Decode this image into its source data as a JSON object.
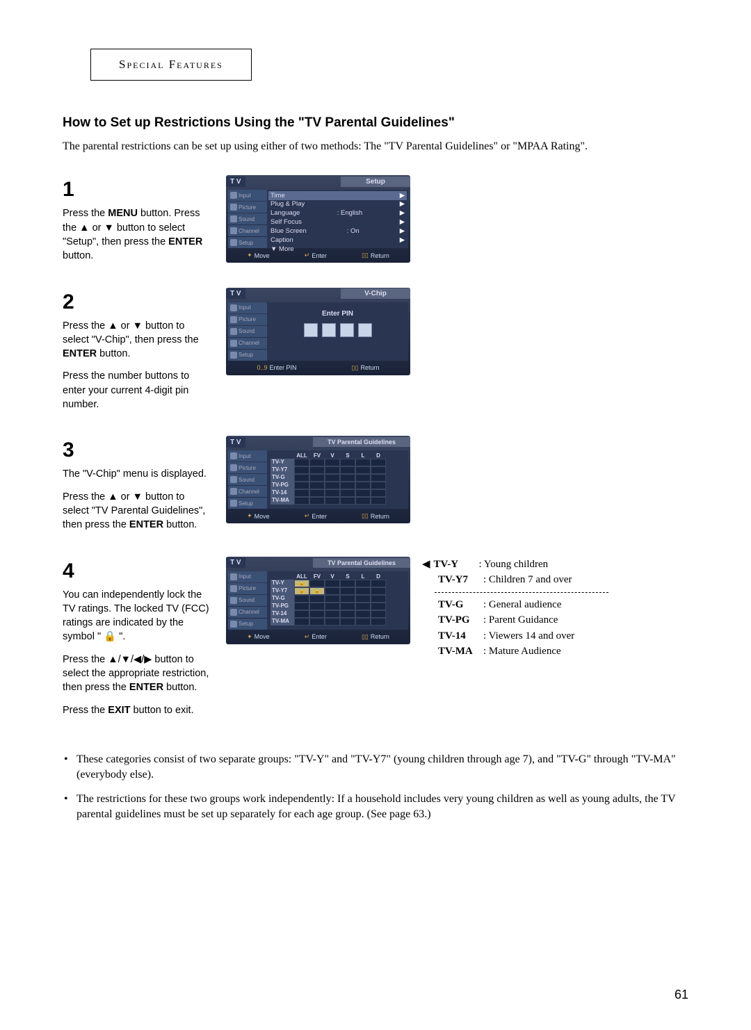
{
  "header": "Special Features",
  "subtitle": "How to Set up Restrictions Using the \"TV Parental Guidelines\"",
  "intro": "The parental restrictions can be set up using either of two methods: The \"TV Parental Guidelines\" or \"MPAA Rating\".",
  "steps": {
    "s1": {
      "num": "1",
      "text_a": "Press the ",
      "bold_a": "MENU",
      "text_b": " button. Press the ▲ or ▼ button to select \"Setup\", then press the ",
      "bold_b": "ENTER",
      "text_c": " button."
    },
    "s2": {
      "num": "2",
      "text_a": "Press the ▲ or ▼ button to select \"V-Chip\", then press the ",
      "bold_a": "ENTER",
      "text_b": " button.",
      "text_c": "Press the number buttons to enter your current 4-digit pin number."
    },
    "s3": {
      "num": "3",
      "text_a": "The \"V-Chip\" menu is displayed.",
      "text_b": "Press the ▲ or ▼ button to select \"TV Parental Guidelines\", then press the ",
      "bold_a": "ENTER",
      "text_c": " button."
    },
    "s4": {
      "num": "4",
      "text_a": "You can independently lock the TV ratings. The locked TV (FCC) ratings are indicated by the symbol \" 🔒 \".",
      "text_b": "Press the ▲/▼/◀/▶ button to select the appropriate restriction, then press  the ",
      "bold_a": "ENTER",
      "text_c": " button.",
      "text_d": "Press the ",
      "bold_b": "EXIT",
      "text_e": " button to exit."
    }
  },
  "osd1": {
    "tv": "T V",
    "title": "Setup",
    "tabs": [
      "Input",
      "Picture",
      "Sound",
      "Channel",
      "Setup"
    ],
    "rows": [
      {
        "l": "Time",
        "r": "▶",
        "hl": true
      },
      {
        "l": "Plug & Play",
        "r": "▶"
      },
      {
        "l": "Language",
        "m": ":  English",
        "r": "▶"
      },
      {
        "l": "Self Focus",
        "r": "▶"
      },
      {
        "l": "Blue Screen",
        "m": ":  On",
        "r": "▶"
      },
      {
        "l": "Caption",
        "r": "▶"
      },
      {
        "l": "▼ More",
        "r": ""
      }
    ],
    "footer": [
      "Move",
      "Enter",
      "Return"
    ]
  },
  "osd2": {
    "tv": "T V",
    "title": "V-Chip",
    "tabs": [
      "Input",
      "Picture",
      "Sound",
      "Channel",
      "Setup"
    ],
    "pin_label": "Enter PIN",
    "footer": [
      "Enter PIN",
      "Return"
    ]
  },
  "osd3": {
    "tv": "T V",
    "title": "TV Parental Guidelines",
    "tabs": [
      "Input",
      "Picture",
      "Sound",
      "Channel",
      "Setup"
    ],
    "cols": [
      "ALL",
      "FV",
      "V",
      "S",
      "L",
      "D"
    ],
    "rows": [
      "TV-Y",
      "TV-Y7",
      "TV-G",
      "TV-PG",
      "TV-14",
      "TV-MA"
    ],
    "footer": [
      "Move",
      "Enter",
      "Return"
    ]
  },
  "osd4": {
    "tv": "T V",
    "title": "TV Parental Guidelines",
    "tabs": [
      "Input",
      "Picture",
      "Sound",
      "Channel",
      "Setup"
    ],
    "cols": [
      "ALL",
      "FV",
      "V",
      "S",
      "L",
      "D"
    ],
    "rows": [
      "TV-Y",
      "TV-Y7",
      "TV-G",
      "TV-PG",
      "TV-14",
      "TV-MA"
    ],
    "locks": {
      "TV-Y": [
        0
      ],
      "TV-Y7": [
        0,
        1
      ]
    },
    "footer": [
      "Move",
      "Enter",
      "Return"
    ]
  },
  "legend": {
    "top": [
      {
        "k": "TV-Y",
        "v": ": Young children"
      },
      {
        "k": "TV-Y7",
        "v": ": Children 7 and over"
      }
    ],
    "bottom": [
      {
        "k": "TV-G",
        "v": ": General audience"
      },
      {
        "k": "TV-PG",
        "v": ": Parent Guidance"
      },
      {
        "k": "TV-14",
        "v": ": Viewers 14 and over"
      },
      {
        "k": "TV-MA",
        "v": ": Mature Audience"
      }
    ]
  },
  "notes": [
    "These categories consist of two separate groups: \"TV-Y\" and \"TV-Y7\" (young children through age 7), and \"TV-G\" through \"TV-MA\" (everybody else).",
    "The restrictions for these two groups work independently: If a household includes very young children as well as young adults, the TV parental guidelines must be set up separately for each age group. (See page 63.)"
  ],
  "pagenum": "61"
}
